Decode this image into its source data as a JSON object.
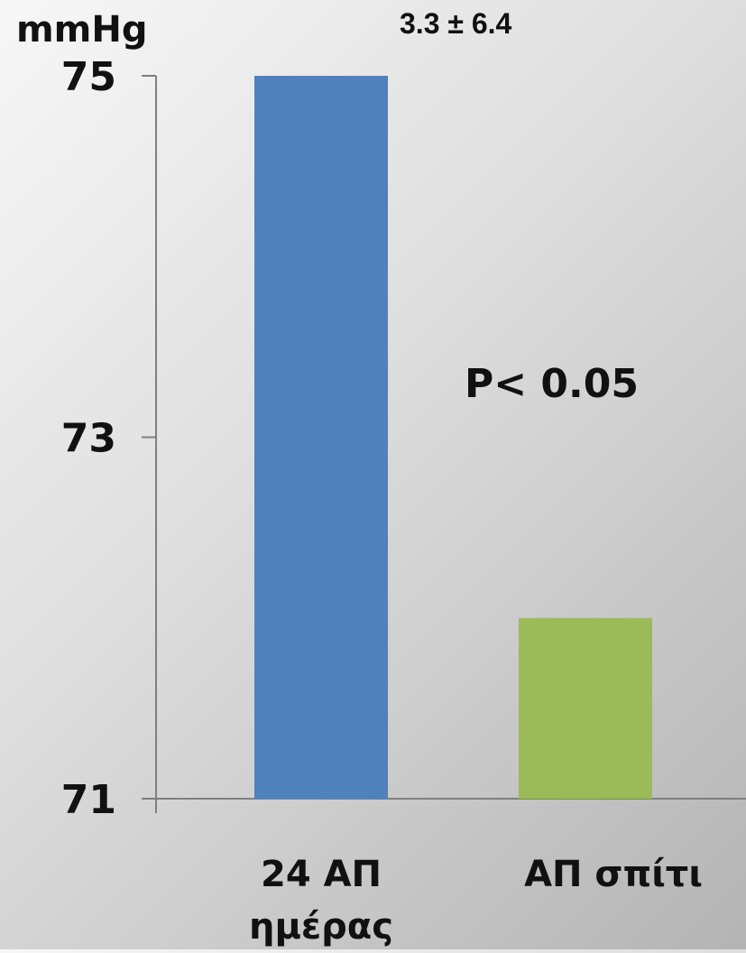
{
  "chart_data": {
    "type": "bar",
    "categories": [
      "24 ΑΠ ημέρας",
      "ΑΠ σπίτι"
    ],
    "category_lines": [
      [
        "24 ΑΠ",
        "ημέρας"
      ],
      [
        "ΑΠ σπίτι"
      ]
    ],
    "values": [
      75,
      72
    ],
    "colors": [
      "#4f81bd",
      "#9bbb59"
    ],
    "yunit": "mmHg",
    "ylim": [
      71,
      75
    ],
    "yticks": [
      "75",
      "73",
      "71"
    ],
    "annotations": [
      "3.3 ± 6.4",
      "P< 0.05"
    ]
  }
}
